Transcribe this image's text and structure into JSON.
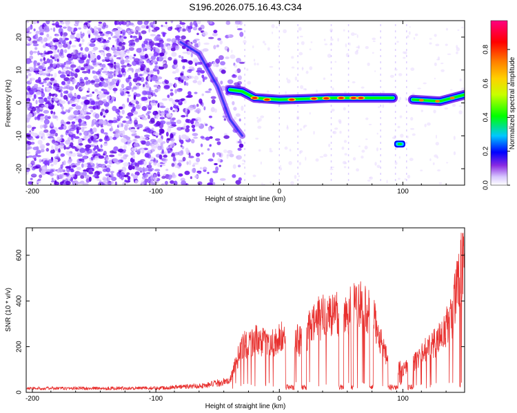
{
  "title": "S196.2026.075.16.43.C34",
  "chart_data": [
    {
      "type": "heatmap",
      "xlabel": "Height of straight line (km)",
      "ylabel": "Frequency (Hz)",
      "xlim": [
        -205,
        150
      ],
      "ylim": [
        -25,
        25
      ],
      "x_ticks": [
        -200,
        -100,
        0,
        100
      ],
      "y_ticks": [
        -20,
        -10,
        0,
        10,
        20
      ],
      "colorbar": {
        "label": "Normalized spectral amplitude",
        "range": [
          0,
          0.97
        ],
        "ticks": [
          "0.0",
          "0.2",
          "0.4",
          "0.6",
          "0.8"
        ],
        "colormap": [
          "#ffffff",
          "#6a00ff",
          "#0000ff",
          "#00c8ff",
          "#00ff00",
          "#ffff00",
          "#ff8000",
          "#ff0000",
          "#ff0080"
        ]
      },
      "features": {
        "noise_region_x": [
          -205,
          -45
        ],
        "carrier_track": [
          {
            "x": -40,
            "y": 4.0
          },
          {
            "x": -30,
            "y": 3.5
          },
          {
            "x": -20,
            "y": 1.5
          },
          {
            "x": 0,
            "y": 1.0
          },
          {
            "x": 20,
            "y": 1.2
          },
          {
            "x": 40,
            "y": 1.5
          },
          {
            "x": 60,
            "y": 1.5
          },
          {
            "x": 80,
            "y": 1.5
          },
          {
            "x": 92,
            "y": 1.5
          }
        ],
        "shifted_segment": {
          "x": [
            93,
            102
          ],
          "y": -12.5
        },
        "late_track": [
          {
            "x": 108,
            "y": 1.0
          },
          {
            "x": 130,
            "y": 0.5
          },
          {
            "x": 150,
            "y": 2.5
          }
        ],
        "early_track": [
          {
            "x": -80,
            "y": 18.5
          },
          {
            "x": -65,
            "y": 15
          },
          {
            "x": -50,
            "y": 5
          },
          {
            "x": -40,
            "y": -5
          },
          {
            "x": -30,
            "y": -10
          }
        ]
      }
    },
    {
      "type": "line",
      "xlabel": "Height of straight line (km)",
      "ylabel": "SNR (10 * v/v)",
      "xlim": [
        -205,
        150
      ],
      "ylim": [
        0,
        720
      ],
      "x_ticks": [
        -200,
        -100,
        0,
        100
      ],
      "y_ticks": [
        0,
        200,
        400,
        600
      ],
      "line_color": "#e8302e",
      "envelope": [
        {
          "x": -205,
          "y": 20
        },
        {
          "x": -100,
          "y": 22
        },
        {
          "x": -60,
          "y": 35
        },
        {
          "x": -40,
          "y": 60
        },
        {
          "x": -30,
          "y": 250
        },
        {
          "x": -20,
          "y": 270
        },
        {
          "x": -10,
          "y": 250
        },
        {
          "x": 0,
          "y": 280
        },
        {
          "x": 10,
          "y": 300
        },
        {
          "x": 20,
          "y": 250
        },
        {
          "x": 25,
          "y": 340
        },
        {
          "x": 30,
          "y": 380
        },
        {
          "x": 40,
          "y": 410
        },
        {
          "x": 50,
          "y": 420
        },
        {
          "x": 60,
          "y": 440
        },
        {
          "x": 65,
          "y": 480
        },
        {
          "x": 70,
          "y": 430
        },
        {
          "x": 80,
          "y": 340
        },
        {
          "x": 85,
          "y": 200
        },
        {
          "x": 90,
          "y": 150
        },
        {
          "x": 100,
          "y": 120
        },
        {
          "x": 110,
          "y": 160
        },
        {
          "x": 120,
          "y": 230
        },
        {
          "x": 130,
          "y": 280
        },
        {
          "x": 140,
          "y": 400
        },
        {
          "x": 145,
          "y": 600
        },
        {
          "x": 150,
          "y": 700
        }
      ],
      "dropouts": [
        [
          5,
          12
        ],
        [
          18,
          22
        ],
        [
          48,
          52
        ],
        [
          58,
          60
        ],
        [
          73,
          76
        ],
        [
          88,
          96
        ],
        [
          104,
          108
        ]
      ]
    }
  ]
}
